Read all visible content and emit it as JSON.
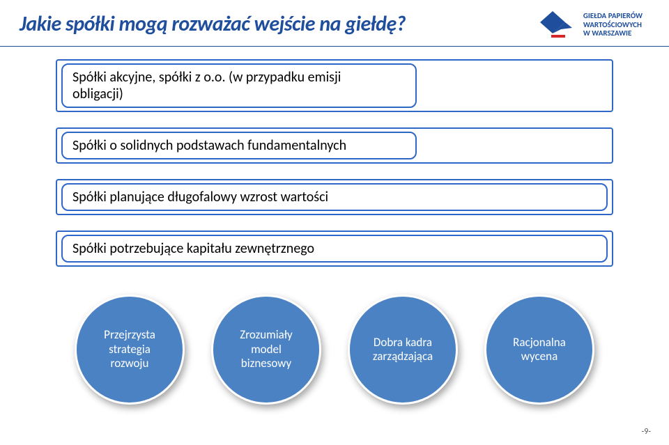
{
  "title": {
    "text": "Jakie spółki mogą rozważać wejście na giełdę?",
    "color": "#1f4e9c",
    "fontsize": 30
  },
  "logo": {
    "name_line1": "GIEŁDA PAPIERÓW",
    "name_line2": "WARTOŚCIOWYCH",
    "name_line3": "W WARSZAWIE",
    "text_color": "#1f4e9c",
    "text_fontsize": 11,
    "mark_color": "#1f4e9c",
    "mark_accent": "#d62828"
  },
  "hr_color": "#1f4e9c",
  "boxes": {
    "outer_border_color": "#2f67c9",
    "outer_border_width": 2,
    "inner_border_color": "#2f67c9",
    "inner_border_width": 2,
    "text_fontsize": 20,
    "items": [
      {
        "line1": "Spółki akcyjne, spółki z o.o. (w przypadku emisji",
        "line2": "obligacji)",
        "narrow": true
      },
      {
        "line1": "Spółki o solidnych podstawach fundamentalnych",
        "line2": null,
        "narrow": true
      },
      {
        "line1": "Spółki planujące długofalowy wzrost wartości",
        "line2": null,
        "narrow": false
      },
      {
        "line1": "Spółki potrzebujące kapitału zewnętrznego",
        "line2": null,
        "narrow": false
      }
    ],
    "narrow_width_pct": 65,
    "wide_width_pct": 100
  },
  "circles": {
    "diameter": 158,
    "fill": "#4b82c3",
    "border_color": "#ffffff",
    "border_width": 3,
    "text_color": "#ffffff",
    "text_fontsize": 17,
    "items": [
      "Przejrzysta\nstrategia\nrozwoju",
      "Zrozumiały\nmodel\nbiznesowy",
      "Dobra kadra\nzarządzająca",
      "Racjonalna\nwycena"
    ]
  },
  "page_number": "-9-"
}
